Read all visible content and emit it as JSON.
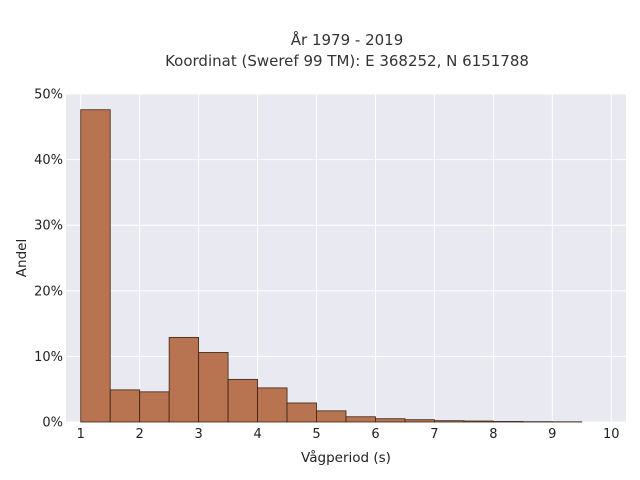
{
  "chart_data": {
    "type": "bar",
    "title_line1": "År 1979 - 2019",
    "title_line2": "Koordinat (Sweref 99 TM): E 368252, N 6151788",
    "xlabel": "Vågperiod (s)",
    "ylabel": "Andel",
    "xlim": [
      0.75,
      10.25
    ],
    "ylim": [
      0,
      50
    ],
    "x_ticks": [
      1,
      2,
      3,
      4,
      5,
      6,
      7,
      8,
      9,
      10
    ],
    "x_tick_labels": [
      "1",
      "2",
      "3",
      "4",
      "5",
      "6",
      "7",
      "8",
      "9",
      "10"
    ],
    "y_ticks": [
      0,
      10,
      20,
      30,
      40,
      50
    ],
    "y_tick_labels": [
      "0%",
      "10%",
      "20%",
      "30%",
      "40%",
      "50%"
    ],
    "bin_width": 0.5,
    "bins": [
      {
        "x0": 1.0,
        "x1": 1.5,
        "value": 47.6
      },
      {
        "x0": 1.5,
        "x1": 2.0,
        "value": 4.9
      },
      {
        "x0": 2.0,
        "x1": 2.5,
        "value": 4.6
      },
      {
        "x0": 2.5,
        "x1": 3.0,
        "value": 12.9
      },
      {
        "x0": 3.0,
        "x1": 3.5,
        "value": 10.6
      },
      {
        "x0": 3.5,
        "x1": 4.0,
        "value": 6.5
      },
      {
        "x0": 4.0,
        "x1": 4.5,
        "value": 5.2
      },
      {
        "x0": 4.5,
        "x1": 5.0,
        "value": 2.9
      },
      {
        "x0": 5.0,
        "x1": 5.5,
        "value": 1.7
      },
      {
        "x0": 5.5,
        "x1": 6.0,
        "value": 0.8
      },
      {
        "x0": 6.0,
        "x1": 6.5,
        "value": 0.5
      },
      {
        "x0": 6.5,
        "x1": 7.0,
        "value": 0.35
      },
      {
        "x0": 7.0,
        "x1": 7.5,
        "value": 0.2
      },
      {
        "x0": 7.5,
        "x1": 8.0,
        "value": 0.15
      },
      {
        "x0": 8.0,
        "x1": 8.5,
        "value": 0.08
      },
      {
        "x0": 8.5,
        "x1": 9.0,
        "value": 0.05
      },
      {
        "x0": 9.0,
        "x1": 9.5,
        "value": 0.03
      }
    ],
    "grid": true,
    "colors": {
      "bar_fill": "#b87350",
      "bar_stroke": "#3c2314",
      "plot_background": "#e8e9f1",
      "grid": "#ffffff"
    }
  }
}
